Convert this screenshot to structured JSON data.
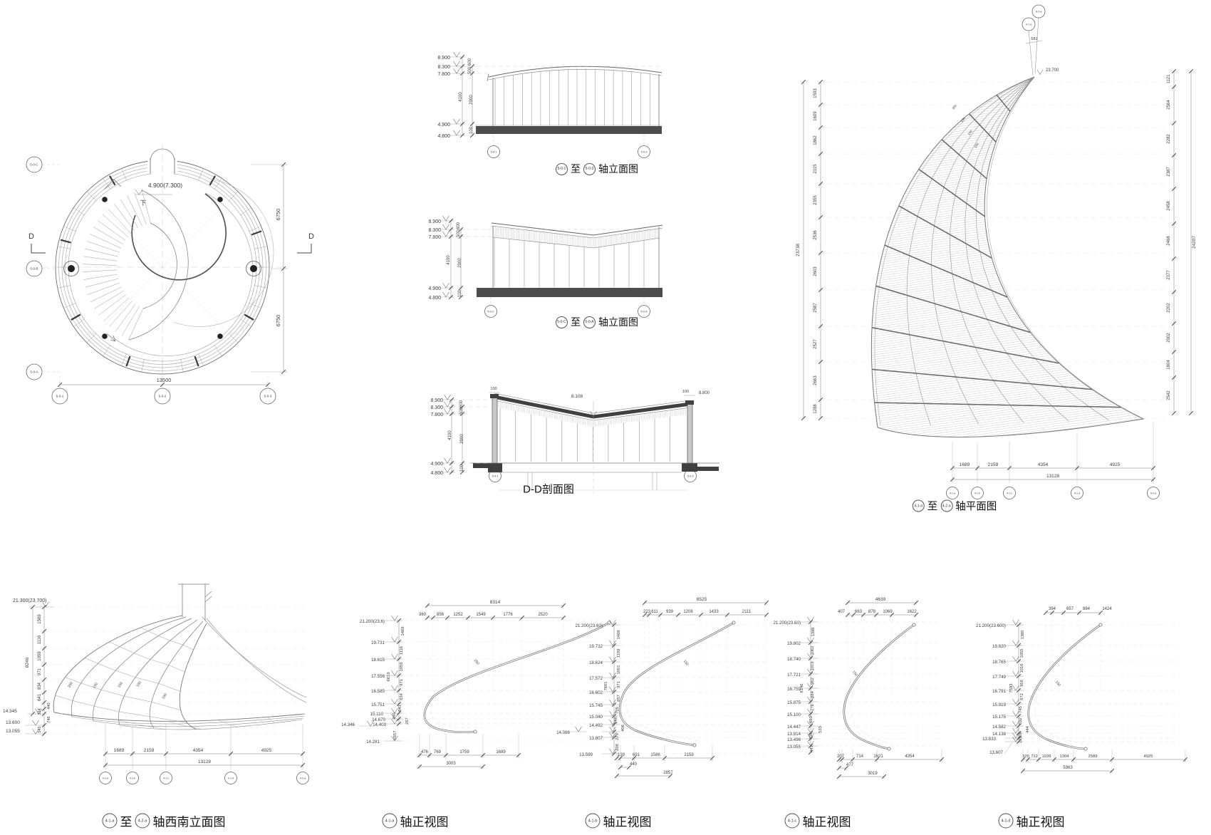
{
  "plan_circle": {
    "level": "4.900(7.300)",
    "down_label": "下",
    "dim_width": "13500",
    "dim_right_top": "6750",
    "dim_right_bottom": "6750",
    "section_label_left": "D",
    "section_label_right": "D",
    "row_bubbles": [
      "5-0-C",
      "5-0-B",
      "5-0-A"
    ],
    "col_bubbles": [
      "5-0-1",
      "5-0-2",
      "5-0-3"
    ]
  },
  "elev1": {
    "levels": [
      "8.900",
      "8.300",
      "7.800",
      "4.900",
      "4.800"
    ],
    "vdims": [
      "600",
      "500",
      "4100",
      "2900",
      "100"
    ],
    "bubbles": [
      "5-0-1",
      "5-0-3"
    ],
    "title": {
      "b1": "5-0-1",
      "to": "至",
      "b2": "5-0-3",
      "text": "轴立面图"
    }
  },
  "elev2": {
    "levels": [
      "8.900",
      "8.300",
      "7.800",
      "4.900",
      "4.800"
    ],
    "vdims": [
      "600",
      "500",
      "4100",
      "2900",
      "100"
    ],
    "bubbles": [
      "5-0-C",
      "5-0-A"
    ],
    "title": {
      "b1": "5-0-C",
      "to": "至",
      "b2": "5-0-A",
      "text": "轴立面图"
    }
  },
  "section_dd": {
    "levels": [
      "8.900",
      "8.300",
      "7.800",
      "4.900",
      "4.800"
    ],
    "vdims": [
      "600",
      "500",
      "4100",
      "2900",
      "100"
    ],
    "wall_dim_left": "100",
    "wall_dim_right": "100",
    "level_right": "8.800",
    "level_valley": "8.108",
    "bubbles": [
      "5-0-1",
      "5-0-3"
    ],
    "title": "D-D剖面图"
  },
  "sail_plan": {
    "left_total": "23738",
    "left_dims": [
      "1593",
      "1609",
      "1862",
      "2115",
      "2355",
      "2536",
      "2603",
      "2587",
      "2527",
      "2663",
      "1288"
    ],
    "right_total": "24207",
    "right_dims": [
      "1121",
      "2564",
      "2282",
      "2387",
      "2458",
      "2468",
      "2377",
      "2202",
      "2002",
      "1804",
      "2542"
    ],
    "top_bubbles": [
      "4-1-a",
      "4-2-a"
    ],
    "top_dim": "581",
    "tip_level": "23.700",
    "tip_labels": [
      "200",
      "150",
      "150",
      "150"
    ],
    "bottom_dims": [
      "1689",
      "2159",
      "4354",
      "4925"
    ],
    "bottom_total": "13128",
    "bottom_bubbles": [
      "4-1-a",
      "4-1-b",
      "4-1-c",
      "4-1-d",
      "4-2-a"
    ],
    "title": {
      "b1": "4-1-a",
      "to": "至",
      "b2": "4-2-a",
      "text": "轴平面图"
    }
  },
  "sw_elev": {
    "top_level": "21.300(23.700)",
    "left_total": "8246",
    "left_dims": [
      "1569",
      "1116",
      "1059",
      "971",
      "834",
      "641"
    ],
    "small_dims": [
      "440",
      "324",
      "746",
      "545"
    ],
    "levels": [
      "14.345",
      "13.600",
      "13.055"
    ],
    "rib_labels": [
      "250",
      "150",
      "150",
      "150",
      "150"
    ],
    "bottom_dims": [
      "1689",
      "2159",
      "4354",
      "4925"
    ],
    "bottom_total": "13128",
    "bottom_bubbles": [
      "4-1-a",
      "4-1-b",
      "4-1-c",
      "4-1-d",
      "4-2-a"
    ],
    "title": {
      "b1": "4-1-a",
      "to": "至",
      "b2": "4-2-a",
      "text": "轴西南立面图"
    }
  },
  "fv_a": {
    "top_total": "8314",
    "top_dims": [
      "360",
      "856",
      "1252",
      "1549",
      "1776",
      "2520"
    ],
    "levels": [
      "21.200(23.6)",
      "19.731",
      "18.615",
      "17.556",
      "16.585",
      "15.751",
      "15.110",
      "14.670",
      "14.403",
      "14.346",
      "14.281"
    ],
    "vdims": [
      "1469",
      "1116",
      "1059",
      "971",
      "834",
      "641",
      "440",
      "267"
    ],
    "tall_dims": [
      "6619",
      "6557"
    ],
    "curve_label": "250",
    "bottom_dims": [
      "476",
      "769",
      "1759",
      "1689"
    ],
    "bottom_total": "3003",
    "title": {
      "b": "4-1-a",
      "text": "轴正视图"
    }
  },
  "fv_b": {
    "top_total": "6525",
    "top_dims": [
      "223",
      "611",
      "939",
      "1208",
      "1433",
      "2111"
    ],
    "levels": [
      "21.200(23.60)",
      "19.732",
      "18.624",
      "17.572",
      "16.602",
      "15.745",
      "15.040",
      "14.492",
      "14.086",
      "13.807",
      "13.599"
    ],
    "vdims": [
      "1468",
      "1109",
      "1051",
      "971",
      "857",
      "705",
      "548",
      "406",
      "279",
      "208"
    ],
    "tall_dims": [
      "7601"
    ],
    "curve_label": "150",
    "bottom_dims": [
      "139",
      "691",
      "1586",
      "2159"
    ],
    "bottom_row2": [
      "440",
      "2857"
    ],
    "title": {
      "b": "4-1-b",
      "text": "轴正视图"
    }
  },
  "fv_c": {
    "top_total": "4639",
    "top_dims": [
      "407",
      "663",
      "878",
      "1069",
      "1622"
    ],
    "levels": [
      "21.200(23.60)",
      "19.802",
      "18.740",
      "17.721",
      "16.759",
      "15.875",
      "15.100",
      "14.447",
      "13.914",
      "13.496",
      "13.055"
    ],
    "vdims": [
      "1398",
      "1062",
      "1019",
      "962",
      "884",
      "776",
      "653",
      "533",
      "418",
      "441"
    ],
    "tall_dims": [
      "8146"
    ],
    "curve_label": "150",
    "bottom_dims": [
      "207",
      "714",
      "1621",
      "4354"
    ],
    "bottom_row2": [
      "477",
      "3019"
    ],
    "title": {
      "b": "4-1-c",
      "text": "轴正视图"
    }
  },
  "fv_d": {
    "top_dims": [
      "394",
      "657",
      "884",
      "1424"
    ],
    "levels": [
      "21.200(23.600)",
      "19.820",
      "18.765",
      "17.749",
      "16.791",
      "15.919",
      "15.175",
      "14.582",
      "14.138",
      "13.833",
      "13.607"
    ],
    "vdims": [
      "1380",
      "1055",
      "1016",
      "958",
      "872",
      "745",
      "592",
      "444",
      "306",
      "225"
    ],
    "tall_dims": [
      "7593"
    ],
    "curve_label": "150",
    "bottom_dims": [
      "320",
      "712",
      "1039",
      "1304",
      "2589",
      "4925"
    ],
    "bottom_total": "5963",
    "title": {
      "b": "4-1-d",
      "text": "轴正视图"
    }
  }
}
